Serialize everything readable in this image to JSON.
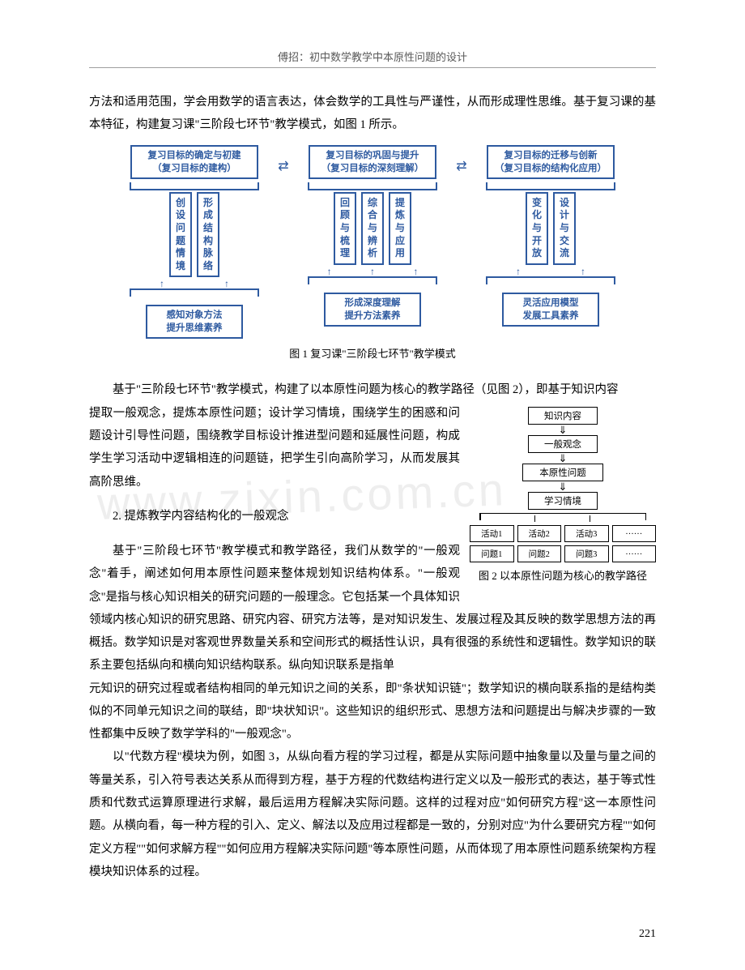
{
  "header": "傅招：初中数学教学中本原性问题的设计",
  "intro_paragraph": "方法和适用范围，学会用数学的语言表达，体会数学的工具性与严谨性，从而形成理性思维。基于复习课的基本特征，构建复习课\"三阶段七环节\"教学模式，如图 1 所示。",
  "figure1": {
    "caption": "图 1  复习课\"三阶段七环节\"教学模式",
    "stages": [
      {
        "top_l1": "复习目标的确定与初建",
        "top_l2": "（复习目标的建构）",
        "cols": [
          "创设问题情境",
          "形成结构脉络"
        ],
        "bot_l1": "感知对象方法",
        "bot_l2": "提升思维素养"
      },
      {
        "top_l1": "复习目标的巩固与提升",
        "top_l2": "（复习目标的深刻理解）",
        "cols": [
          "回顾与梳理",
          "综合与辨析",
          "提炼与应用"
        ],
        "bot_l1": "形成深度理解",
        "bot_l2": "提升方法素养"
      },
      {
        "top_l1": "复习目标的迁移与创新",
        "top_l2": "（复习目标的结构化应用）",
        "cols": [
          "变化与开放",
          "设计与交流"
        ],
        "bot_l1": "灵活应用模型",
        "bot_l2": "发展工具素养"
      }
    ]
  },
  "para_after_fig1": "基于\"三阶段七环节\"教学模式，构建了以本原性问题为核心的教学路径（见图 2），即基于知识内容",
  "wrap_text": {
    "p1": "提取一般观念，提炼本原性问题；设计学习情境，围绕学生的困惑和问题设计引导性问题，围绕教学目标设计推进型问题和延展性问题，构成学生学习活动中逻辑相连的问题链，把学生引向高阶学习，从而发展其高阶思维。",
    "sect": "2. 提炼教学内容结构化的一般观念",
    "p2": "基于\"三阶段七环节\"教学模式和教学路径，我们从数学的\"一般观念\"着手，阐述如何用本原性问题来整体规划知识结构体系。\"一般观念\"是指与核心知识相关的研究问题的一般理念。它包括某一个具体知识领域内核心知识的研究思路、研究内容、研究方法等，是对知识发生、发展过程及其反映的数学思想方法的再概括。数学知识是对客观世界数量关系和空间形式的概括性认识，具有很强的系统性和逻辑性。数学知识的联系主要包括纵向和横向知识结构联系。纵向知识联系是指单"
  },
  "figure2": {
    "caption": "图 2  以本原性问题为核心的教学路径",
    "nodes": {
      "n1": "知识内容",
      "n2": "一般观念",
      "n3": "本原性问题",
      "n4": "学习情境"
    },
    "row_acts": [
      "活动1",
      "活动2",
      "活动3",
      "……"
    ],
    "row_qs": [
      "问题1",
      "问题2",
      "问题3",
      "……"
    ]
  },
  "para_after_wrap": "元知识的研究过程或者结构相同的单元知识之间的关系，即\"条状知识链\"；数学知识的横向联系指的是结构类似的不同单元知识之间的联结，即\"块状知识\"。这些知识的组织形式、思想方法和问题提出与解决步骤的一致性都集中反映了数学学科的\"一般观念\"。",
  "para_algebra": "以\"代数方程\"模块为例，如图 3，从纵向看方程的学习过程，都是从实际问题中抽象量以及量与量之间的等量关系，引入符号表达关系从而得到方程，基于方程的代数结构进行定义以及一般形式的表达，基于等式性质和代数式运算原理进行求解，最后运用方程解决实际问题。这样的过程对应\"如何研究方程\"这一本原性问题。从横向看，每一种方程的引入、定义、解法以及应用过程都是一致的，分别对应\"为什么要研究方程\"\"如何定义方程\"\"如何求解方程\"\"如何应用方程解决实际问题\"等本原性问题，从而体现了用本原性问题系统架构方程模块知识体系的过程。",
  "page_number": "221"
}
